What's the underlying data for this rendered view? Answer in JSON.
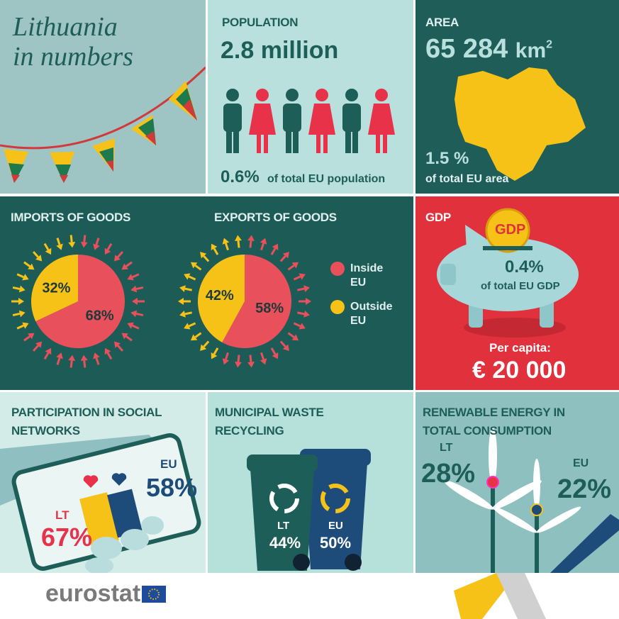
{
  "title_lines": [
    "Lithuania",
    "in numbers"
  ],
  "population": {
    "label": "POPULATION",
    "value": "2.8 million",
    "share": "0.6%",
    "share_text": "of total EU population"
  },
  "area": {
    "label": "AREA",
    "value": "65 284",
    "unit": "km",
    "unit_power": "2",
    "share": "1.5 %",
    "share_text": "of total EU area"
  },
  "trade": {
    "legend": [
      {
        "name": "Inside EU",
        "color": "#e8505b"
      },
      {
        "name": "Outside EU",
        "color": "#f6c217"
      }
    ],
    "charts": [
      {
        "type": "pie",
        "title": "IMPORTS OF GOODS",
        "values": [
          68,
          32
        ],
        "value_labels": [
          "68%",
          "32%"
        ]
      },
      {
        "type": "pie",
        "title": "EXPORTS OF GOODS",
        "values": [
          58,
          42
        ],
        "value_labels": [
          "58%",
          "42%"
        ]
      }
    ]
  },
  "gdp": {
    "label": "GDP",
    "coin": "GDP",
    "share": "0.4%",
    "share_text": "of total EU GDP",
    "per_capita_label": "Per capita:",
    "per_capita": "€ 20 000"
  },
  "social": {
    "title": "PARTICIPATION IN SOCIAL NETWORKS",
    "eu_label": "EU",
    "eu": "58%",
    "lt_label": "LT",
    "lt": "67%"
  },
  "waste": {
    "title": "MUNICIPAL WASTE RECYCLING",
    "lt_label": "LT",
    "lt": "44%",
    "eu_label": "EU",
    "eu": "50%"
  },
  "renewable": {
    "title": "RENEWABLE ENERGY IN TOTAL CONSUMPTION",
    "lt_label": "LT",
    "lt": "28%",
    "eu_label": "EU",
    "eu": "22%"
  },
  "footer": "eurostat"
}
